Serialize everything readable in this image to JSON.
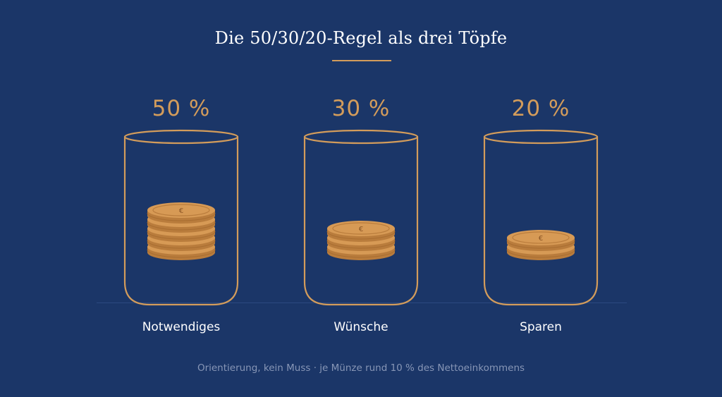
{
  "title": "Die 50/30/20-Regel als drei Töpfe",
  "pots": [
    {
      "percent": "50 %",
      "label": "Notwendiges",
      "coins": 5
    },
    {
      "percent": "30 %",
      "label": "Wünsche",
      "coins": 3
    },
    {
      "percent": "20 %",
      "label": "Sparen",
      "coins": 2
    }
  ],
  "coin_symbol": "€",
  "footnote": "Orientierung, kein Muss · je Münze rund 10 % des Nettoeinkommens",
  "colors": {
    "background": "#1b3668",
    "accent": "#d39c5b",
    "coin_face": "#d79a55",
    "coin_edge": "#b97c3c",
    "text": "#ffffff",
    "muted": "#8796b6"
  }
}
